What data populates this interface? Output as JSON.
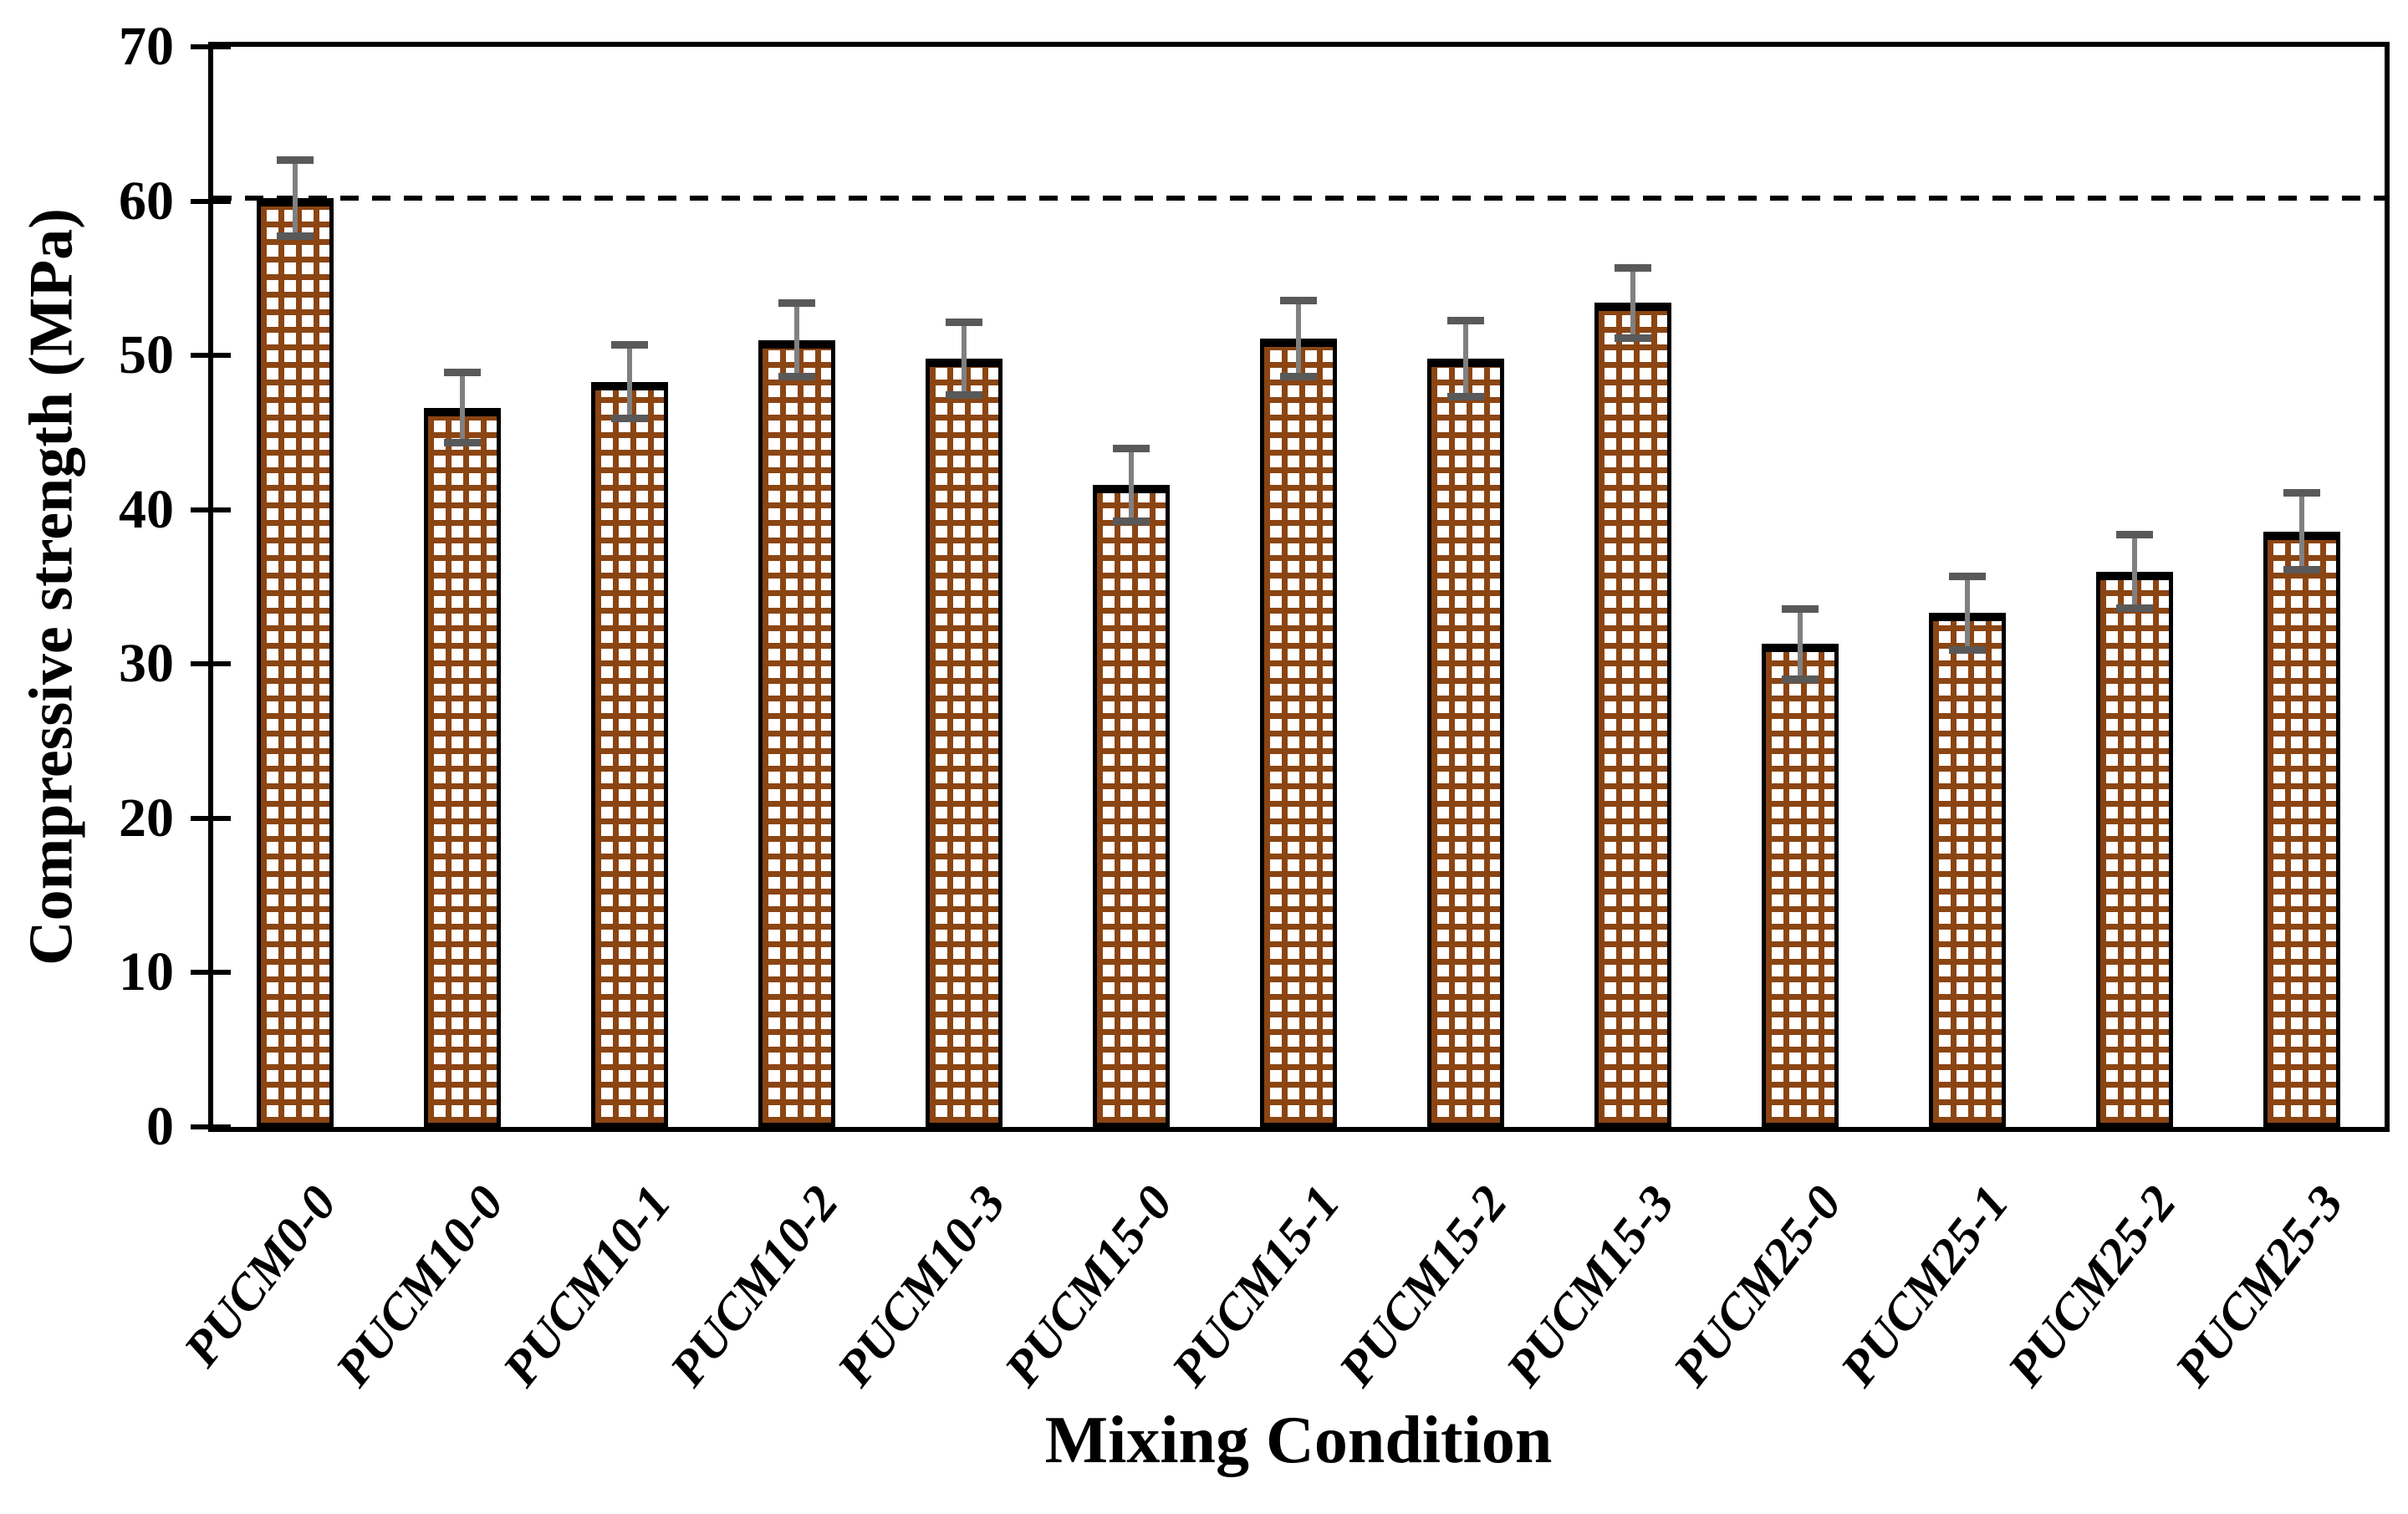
{
  "figure": {
    "background": "#ffffff"
  },
  "chart_data": {
    "type": "bar",
    "title": "",
    "xlabel": "Mixing Condition",
    "ylabel": "Compressive strength (MPa)",
    "ylim": [
      0,
      70
    ],
    "yticks": [
      0,
      10,
      20,
      30,
      40,
      50,
      60,
      70
    ],
    "grid": false,
    "legend_position": "none",
    "categories": [
      "PUCM0-0",
      "PUCM10-0",
      "PUCM10-1",
      "PUCM10-2",
      "PUCM10-3",
      "PUCM15-0",
      "PUCM15-1",
      "PUCM15-2",
      "PUCM15-3",
      "PUCM25-0",
      "PUCM25-1",
      "PUCM25-2",
      "PUCM25-3"
    ],
    "series": [
      {
        "name": "Compressive strength",
        "values": [
          60.2,
          46.6,
          48.3,
          51.0,
          49.8,
          41.6,
          51.1,
          49.8,
          53.4,
          31.3,
          33.3,
          36.0,
          38.6
        ],
        "errors": [
          2.5,
          2.3,
          2.4,
          2.4,
          2.4,
          2.4,
          2.5,
          2.5,
          2.3,
          2.3,
          2.4,
          2.4,
          2.5
        ]
      }
    ],
    "reference_line": {
      "y": 60.2,
      "style": "dashed",
      "color": "#000000"
    },
    "styles": {
      "bar_fill": "#ffffff",
      "hatch_color": "#8B4513",
      "bar_edge_color": "#000000",
      "error_line_color": "#808080",
      "error_cap_color": "#595959",
      "axis_color": "#000000",
      "text_color": "#000000"
    }
  }
}
